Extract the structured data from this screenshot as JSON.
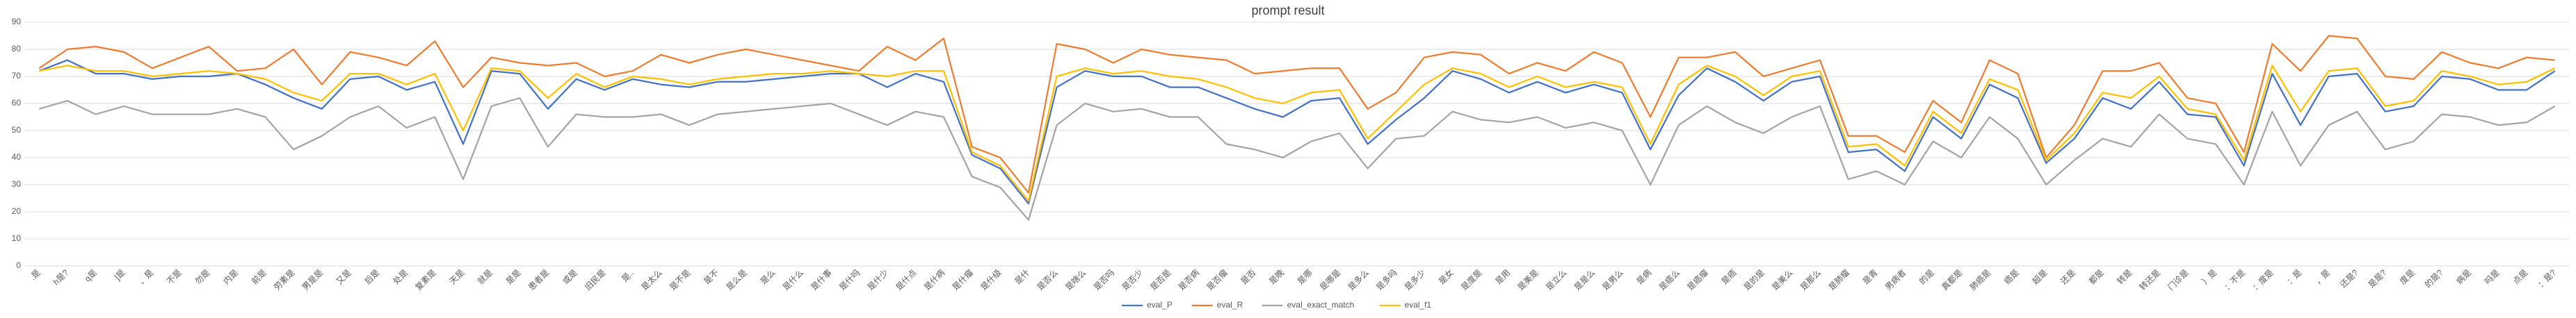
{
  "chart_data": {
    "type": "line",
    "title": "prompt result",
    "categories": [
      ".是",
      "h是?",
      "q是",
      "]是",
      "、是",
      "不是",
      "勿是",
      "内是",
      "前是",
      "劳素是",
      "男是是",
      "又是",
      "后是",
      "处是",
      "复素是",
      "天是",
      "就是",
      "是是",
      "患者是",
      "或是",
      "旧民是",
      "是..",
      "是太么",
      "是不是",
      "是不",
      "是么是",
      "是么",
      "是什么",
      "是什事",
      "是什吗",
      "是什少",
      "是什点",
      "是什病",
      "是什瘤",
      "是什级",
      "是什",
      "是否么",
      "是啥么",
      "是否吗",
      "是否少",
      "是否是",
      "是否病",
      "是否瘤",
      "是否",
      "是晚",
      "是哪",
      "是哪是",
      "是多么",
      "是多吗",
      "是多少",
      "是女",
      "是度是",
      "是用",
      "是美是",
      "是立么",
      "是是么",
      "是男么",
      "是病",
      "是癌么",
      "是癌瘤",
      "是癌",
      "是的是",
      "是美么",
      "是那么",
      "是肺瘤",
      "是青",
      "男病者",
      "的是",
      "真都是",
      "肺癌是",
      "癌是",
      "超是",
      "还是",
      "都是",
      "转是",
      "转还是",
      "门诊是",
      "）是",
      "：不是",
      "：度是",
      "：是",
      "，是",
      "还是?",
      "是是?",
      "度是",
      "的是?",
      "病是",
      "吗是",
      "点是",
      "：是?"
    ],
    "series": [
      {
        "name": "eval_P",
        "color": "#4472c4",
        "values": [
          72,
          76,
          71,
          71,
          69,
          70,
          70,
          71,
          67,
          62,
          58,
          69,
          70,
          65,
          68,
          45,
          72,
          71,
          58,
          69,
          65,
          69,
          67,
          66,
          68,
          68,
          69,
          70,
          71,
          71,
          66,
          71,
          68,
          41,
          36,
          23,
          66,
          72,
          70,
          70,
          66,
          66,
          62,
          58,
          55,
          61,
          62,
          45,
          54,
          62,
          72,
          69,
          64,
          68,
          64,
          67,
          64,
          43,
          63,
          73,
          68,
          61,
          68,
          70,
          42,
          43,
          35,
          55,
          47,
          67,
          62,
          38,
          47,
          62,
          58,
          68,
          56,
          55,
          37,
          71,
          52,
          70,
          71,
          57,
          59,
          70,
          69,
          65,
          65,
          72
        ]
      },
      {
        "name": "eval_R",
        "color": "#ed7d31",
        "values": [
          73,
          80,
          81,
          79,
          73,
          77,
          81,
          72,
          73,
          80,
          67,
          79,
          77,
          74,
          83,
          66,
          77,
          75,
          74,
          75,
          70,
          72,
          78,
          75,
          78,
          80,
          78,
          76,
          74,
          72,
          81,
          76,
          84,
          44,
          40,
          27,
          82,
          80,
          75,
          80,
          78,
          77,
          76,
          71,
          72,
          73,
          73,
          58,
          64,
          77,
          79,
          78,
          71,
          75,
          72,
          79,
          75,
          55,
          77,
          77,
          79,
          70,
          73,
          76,
          48,
          48,
          42,
          61,
          53,
          76,
          71,
          40,
          52,
          72,
          72,
          75,
          62,
          60,
          42,
          82,
          72,
          85,
          84,
          70,
          69,
          79,
          75,
          73,
          77,
          76
        ]
      },
      {
        "name": "eval_exact_match",
        "color": "#a5a5a5",
        "values": [
          58,
          61,
          56,
          59,
          56,
          56,
          56,
          58,
          55,
          43,
          48,
          55,
          59,
          51,
          55,
          32,
          59,
          62,
          44,
          56,
          55,
          55,
          56,
          52,
          56,
          57,
          58,
          59,
          60,
          56,
          52,
          57,
          55,
          33,
          29,
          17,
          52,
          60,
          57,
          58,
          55,
          55,
          45,
          43,
          40,
          46,
          49,
          36,
          47,
          48,
          57,
          54,
          53,
          55,
          51,
          53,
          50,
          30,
          52,
          59,
          53,
          49,
          55,
          59,
          32,
          35,
          30,
          46,
          40,
          55,
          47,
          30,
          39,
          47,
          44,
          56,
          47,
          45,
          30,
          57,
          37,
          52,
          57,
          43,
          46,
          56,
          55,
          52,
          53,
          59
        ]
      },
      {
        "name": "eval_f1",
        "color": "#ffc000",
        "values": [
          72,
          74,
          72,
          72,
          70,
          71,
          72,
          71,
          69,
          64,
          61,
          71,
          71,
          67,
          71,
          50,
          73,
          72,
          62,
          71,
          66,
          70,
          69,
          67,
          69,
          70,
          71,
          71,
          72,
          71,
          70,
          72,
          72,
          42,
          37,
          24,
          70,
          73,
          71,
          72,
          70,
          69,
          66,
          62,
          60,
          64,
          65,
          47,
          57,
          67,
          73,
          71,
          66,
          70,
          66,
          68,
          66,
          45,
          67,
          74,
          70,
          63,
          70,
          72,
          44,
          45,
          37,
          57,
          49,
          69,
          65,
          39,
          49,
          64,
          62,
          70,
          58,
          56,
          39,
          74,
          57,
          72,
          73,
          59,
          61,
          72,
          70,
          67,
          68,
          73
        ]
      }
    ],
    "ylim": [
      0,
      90
    ],
    "yticks": [
      0,
      10,
      20,
      30,
      40,
      50,
      60,
      70,
      80,
      90
    ],
    "grid": true
  }
}
